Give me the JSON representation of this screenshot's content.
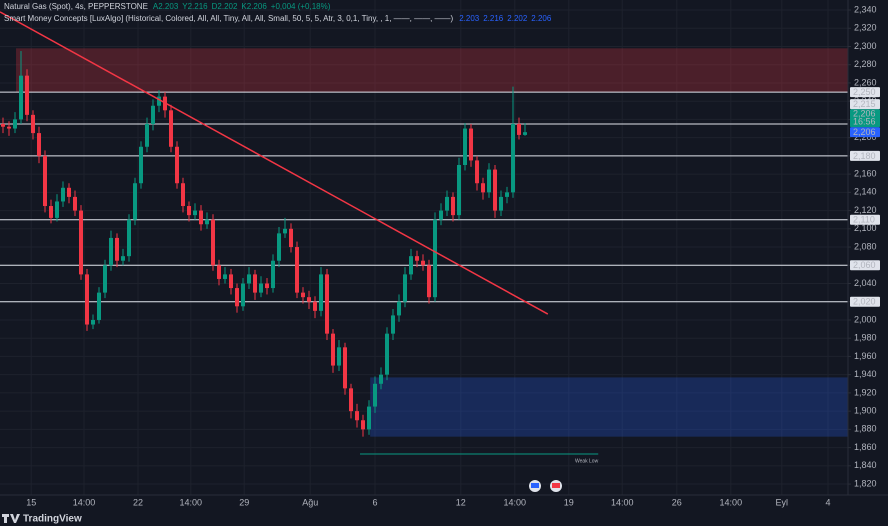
{
  "chart_data": {
    "type": "candlestick",
    "title": "Natural Gas (Spot), 4s, PEPPERSTONE",
    "ohlc_legend": [
      "A2.203",
      "Y2.216",
      "D2.202",
      "K2.206",
      "+0,004 (+0,18%)"
    ],
    "indicator": "Smart Money Concepts [LuxAlgo] (Historical, Colored, All, All, Tiny, All, All, Small, 50, 5, 5, Atr, 3, 0,1, Tiny, , 1, ——, ——, ——)",
    "indicator_values": [
      "2.203",
      "2.216",
      "2.202",
      "2.206"
    ],
    "up_color": "#089981",
    "down_color": "#f23645",
    "open": [
      2215,
      2212,
      2210,
      2220,
      2268,
      2225,
      2205,
      2180,
      2125,
      2112,
      2130,
      2145,
      2135,
      2120,
      2050,
      1995,
      2000,
      2030,
      2060,
      2090,
      2065,
      2070,
      2110,
      2150,
      2190,
      2215,
      2235,
      2245,
      2230,
      2190,
      2150,
      2125,
      2115,
      2120,
      2105,
      2110,
      2060,
      2045,
      2050,
      2035,
      2015,
      2040,
      2050,
      2030,
      2040,
      2035,
      2065,
      2095,
      2100,
      2080,
      2030,
      2025,
      2020,
      2010,
      2050,
      1985,
      1950,
      1970,
      1925,
      1900,
      1890,
      1880,
      1905,
      1930,
      1940,
      1985,
      2005,
      2020,
      2050,
      2070,
      2065,
      2060,
      2025,
      2110,
      2120,
      2135,
      2115,
      2170,
      2210,
      2175,
      2150,
      2140,
      2165,
      2120,
      2135,
      2140,
      2215,
      2203
    ],
    "high": [
      2222,
      2218,
      2228,
      2295,
      2275,
      2230,
      2212,
      2186,
      2132,
      2138,
      2152,
      2150,
      2142,
      2126,
      2056,
      2006,
      2036,
      2066,
      2098,
      2095,
      2078,
      2116,
      2156,
      2196,
      2222,
      2242,
      2252,
      2250,
      2236,
      2196,
      2156,
      2130,
      2128,
      2126,
      2118,
      2116,
      2066,
      2058,
      2056,
      2040,
      2046,
      2058,
      2055,
      2048,
      2046,
      2072,
      2102,
      2112,
      2106,
      2086,
      2036,
      2032,
      2026,
      2058,
      2056,
      1990,
      1978,
      1975,
      1930,
      1908,
      1896,
      1912,
      1938,
      1948,
      1992,
      2012,
      2028,
      2058,
      2078,
      2076,
      2072,
      2066,
      2118,
      2128,
      2142,
      2140,
      2178,
      2216,
      2215,
      2180,
      2156,
      2172,
      2170,
      2142,
      2146,
      2256,
      2222,
      2216
    ],
    "low": [
      2205,
      2202,
      2205,
      2215,
      2218,
      2198,
      2172,
      2118,
      2106,
      2108,
      2124,
      2128,
      2114,
      2044,
      1988,
      1990,
      1996,
      2024,
      2054,
      2058,
      2060,
      2064,
      2104,
      2144,
      2184,
      2208,
      2228,
      2222,
      2184,
      2144,
      2118,
      2108,
      2110,
      2098,
      2100,
      2054,
      2038,
      2040,
      2028,
      2008,
      2010,
      2034,
      2022,
      2025,
      2028,
      2030,
      2058,
      2090,
      2074,
      2024,
      2018,
      2012,
      2002,
      2004,
      1978,
      1942,
      1944,
      1918,
      1892,
      1882,
      1872,
      1874,
      1898,
      1924,
      1934,
      1978,
      1998,
      2014,
      2044,
      2058,
      2054,
      2018,
      2020,
      2104,
      2114,
      2108,
      2110,
      2164,
      2168,
      2142,
      2132,
      2134,
      2112,
      2114,
      2128,
      2134,
      2198,
      2202
    ],
    "close": [
      2212,
      2210,
      2220,
      2268,
      2225,
      2205,
      2180,
      2125,
      2112,
      2130,
      2145,
      2135,
      2120,
      2050,
      1995,
      2000,
      2030,
      2060,
      2090,
      2065,
      2070,
      2110,
      2150,
      2190,
      2215,
      2235,
      2245,
      2230,
      2190,
      2150,
      2125,
      2115,
      2120,
      2105,
      2110,
      2060,
      2045,
      2050,
      2035,
      2015,
      2040,
      2050,
      2030,
      2040,
      2035,
      2065,
      2095,
      2100,
      2080,
      2030,
      2025,
      2020,
      2010,
      2050,
      1985,
      1950,
      1970,
      1925,
      1900,
      1890,
      1880,
      1905,
      1930,
      1940,
      1985,
      2005,
      2020,
      2050,
      2070,
      2065,
      2060,
      2025,
      2110,
      2120,
      2135,
      2115,
      2170,
      2210,
      2175,
      2150,
      2140,
      2165,
      2120,
      2135,
      2140,
      2215,
      2203,
      2206
    ],
    "xlim": [
      -0.5,
      140.83
    ],
    "xticks": [
      {
        "value": 4.7,
        "label": "15"
      },
      {
        "value": 13.5,
        "label": "14:00"
      },
      {
        "value": 22.5,
        "label": "22"
      },
      {
        "value": 31.3,
        "label": "14:00"
      },
      {
        "value": 40.2,
        "label": "29"
      },
      {
        "value": 51.2,
        "label": "Ağu"
      },
      {
        "value": 62,
        "label": "6"
      },
      {
        "value": 76.3,
        "label": "12"
      },
      {
        "value": 85.3,
        "label": "14:00"
      },
      {
        "value": 94.3,
        "label": "19"
      },
      {
        "value": 103.2,
        "label": "14:00"
      },
      {
        "value": 112.3,
        "label": "26"
      },
      {
        "value": 121.3,
        "label": "14:00"
      },
      {
        "value": 129.8,
        "label": "Eyl"
      },
      {
        "value": 137.5,
        "label": "4"
      }
    ],
    "ylim": [
      1808,
      2351
    ],
    "yticks": [
      {
        "value": 1820,
        "label": "1,820"
      },
      {
        "value": 1840,
        "label": "1,840"
      },
      {
        "value": 1860,
        "label": "1,860"
      },
      {
        "value": 1880,
        "label": "1,880"
      },
      {
        "value": 1900,
        "label": "1,900"
      },
      {
        "value": 1920,
        "label": "1,920"
      },
      {
        "value": 1940,
        "label": "1,940"
      },
      {
        "value": 1960,
        "label": "1,960"
      },
      {
        "value": 1980,
        "label": "1,980"
      },
      {
        "value": 2000,
        "label": "2,000"
      },
      {
        "value": 2020,
        "label": "2,020"
      },
      {
        "value": 2040,
        "label": "2,040"
      },
      {
        "value": 2060,
        "label": "2,060"
      },
      {
        "value": 2080,
        "label": "2,080"
      },
      {
        "value": 2100,
        "label": "2,100"
      },
      {
        "value": 2120,
        "label": "2,120"
      },
      {
        "value": 2140,
        "label": "2,140"
      },
      {
        "value": 2160,
        "label": "2,160"
      },
      {
        "value": 2180,
        "label": "2,180"
      },
      {
        "value": 2200,
        "label": "2,200"
      },
      {
        "value": 2220,
        "label": "2,220"
      },
      {
        "value": 2240,
        "label": "2,240"
      },
      {
        "value": 2260,
        "label": "2,260"
      },
      {
        "value": 2280,
        "label": "2,280"
      },
      {
        "value": 2300,
        "label": "2,300"
      },
      {
        "value": 2320,
        "label": "2,320"
      },
      {
        "value": 2340,
        "label": "2,340"
      }
    ],
    "grid": true,
    "levels": [
      {
        "value": 2250,
        "label": "2,250"
      },
      {
        "value": 2215,
        "label": "2,215"
      },
      {
        "value": 2180,
        "label": "2,180"
      },
      {
        "value": 2110,
        "label": "2,110"
      },
      {
        "value": 2060,
        "label": "2,060"
      },
      {
        "value": 2020,
        "label": "2,020"
      }
    ],
    "last_price": {
      "value": 2206,
      "label": "2,206",
      "countdown": "16:56",
      "color": "#089981"
    },
    "indicator_price": {
      "value": 2206,
      "label": "2,206",
      "color": "#2962ff"
    },
    "zones": [
      {
        "top": 2298,
        "bottom": 2250,
        "start": 2.17,
        "color": "#f23645"
      },
      {
        "top": 1937,
        "bottom": 1872,
        "start": 61.2,
        "color": "#2962ff"
      }
    ],
    "trendline": {
      "x": [
        -0.5,
        90.8
      ],
      "y": [
        2338,
        2006.5
      ],
      "color": "#f23645"
    },
    "weak_low": {
      "label": "Weak Low",
      "value": 1853,
      "start": 59.5,
      "end": 99.2,
      "color": "#089981"
    }
  },
  "branding": "TradingView"
}
